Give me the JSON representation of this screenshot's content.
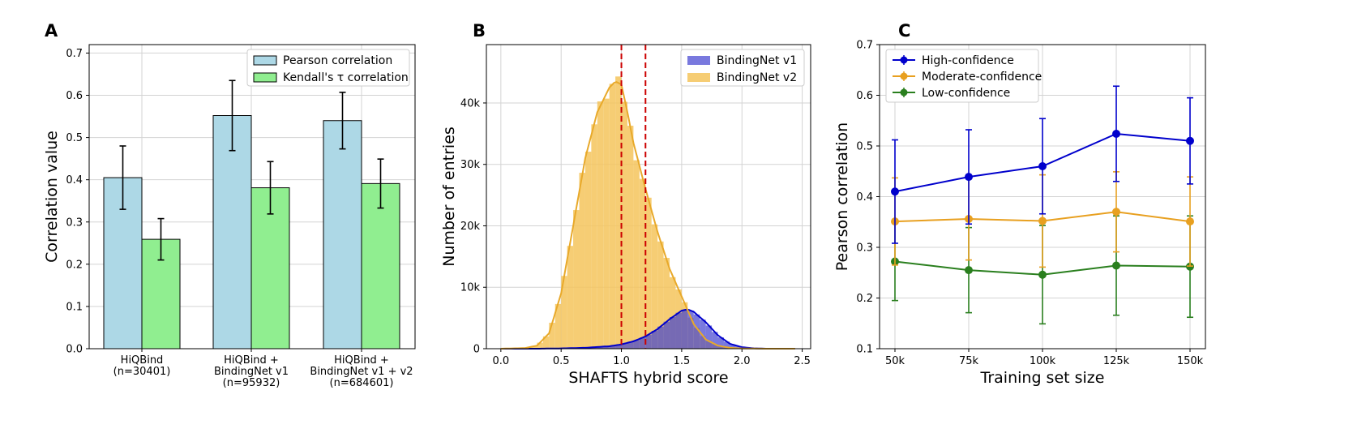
{
  "chart_data": [
    {
      "panel": "A",
      "type": "bar",
      "ylabel": "Correlation value",
      "ylim": [
        0,
        0.72
      ],
      "yticks": [
        "0.0",
        "0.1",
        "0.2",
        "0.3",
        "0.4",
        "0.5",
        "0.6",
        "0.7"
      ],
      "categories": [
        [
          "HiQBind",
          "(n=30401)"
        ],
        [
          "HiQBind +",
          "BindingNet v1",
          "(n=95932)"
        ],
        [
          "HiQBind +",
          "BindingNet v1 + v2",
          "(n=684601)"
        ]
      ],
      "series": [
        {
          "name": "Pearson correlation",
          "color": "#add8e6",
          "values": [
            0.405,
            0.552,
            0.54
          ],
          "err": [
            0.075,
            0.083,
            0.067
          ]
        },
        {
          "name": "Kendall's τ correlation",
          "color": "#90ee90",
          "values": [
            0.259,
            0.381,
            0.391
          ],
          "err": [
            0.049,
            0.062,
            0.058
          ]
        }
      ],
      "legend": "top-right",
      "grid": true
    },
    {
      "panel": "B",
      "type": "area",
      "xlabel": "SHAFTS hybrid score",
      "ylabel": "Number of entries",
      "xlim": [
        -0.12,
        2.57
      ],
      "ylim": [
        0,
        49500
      ],
      "xticks": [
        "0.0",
        "0.5",
        "1.0",
        "1.5",
        "2.0",
        "2.5"
      ],
      "yticks": [
        "0",
        "10k",
        "20k",
        "30k",
        "40k"
      ],
      "vlines": [
        1.0,
        1.2
      ],
      "vline_color": "#cc0000",
      "series": [
        {
          "name": "BindingNet v1",
          "color": "#4040d0",
          "x": [
            0.0,
            0.3,
            0.5,
            0.7,
            0.9,
            1.0,
            1.1,
            1.2,
            1.3,
            1.4,
            1.5,
            1.55,
            1.6,
            1.7,
            1.8,
            1.9,
            2.0,
            2.1,
            2.2,
            2.45
          ],
          "values": [
            0,
            0,
            50,
            150,
            400,
            700,
            1200,
            2000,
            3200,
            4800,
            6200,
            6400,
            6000,
            4300,
            2200,
            800,
            250,
            60,
            0,
            0
          ]
        },
        {
          "name": "BindingNet v2",
          "color": "#f5c45c",
          "x": [
            0.0,
            0.2,
            0.3,
            0.4,
            0.5,
            0.6,
            0.7,
            0.8,
            0.9,
            0.95,
            1.0,
            1.05,
            1.1,
            1.2,
            1.3,
            1.4,
            1.5,
            1.6,
            1.7,
            1.8,
            1.9,
            2.0,
            2.2,
            2.45
          ],
          "values": [
            0,
            100,
            500,
            2500,
            9000,
            20000,
            31000,
            38500,
            42500,
            43500,
            43000,
            38500,
            33500,
            26000,
            19000,
            13000,
            8500,
            4000,
            1500,
            500,
            150,
            40,
            0,
            0
          ]
        }
      ],
      "legend": "top-right",
      "grid": true
    },
    {
      "panel": "C",
      "type": "line",
      "xlabel": "Training set size",
      "ylabel": "Pearson correlation",
      "ylim": [
        0.1,
        0.7
      ],
      "yticks": [
        "0.1",
        "0.2",
        "0.3",
        "0.4",
        "0.5",
        "0.6",
        "0.7"
      ],
      "categories": [
        "50k",
        "75k",
        "100k",
        "125k",
        "150k"
      ],
      "series": [
        {
          "name": "High-confidence",
          "color": "#0000cc",
          "values": [
            0.41,
            0.439,
            0.46,
            0.524,
            0.51
          ],
          "err": [
            0.102,
            0.093,
            0.094,
            0.094,
            0.085
          ]
        },
        {
          "name": "Moderate-confidence",
          "color": "#e8a020",
          "values": [
            0.351,
            0.356,
            0.352,
            0.37,
            0.351
          ],
          "err": [
            0.086,
            0.081,
            0.091,
            0.079,
            0.088
          ]
        },
        {
          "name": "Low-confidence",
          "color": "#2a7f1e",
          "values": [
            0.272,
            0.255,
            0.246,
            0.264,
            0.262
          ],
          "err": [
            0.077,
            0.084,
            0.097,
            0.098,
            0.1
          ]
        }
      ],
      "legend": "top-left",
      "grid": true
    }
  ]
}
